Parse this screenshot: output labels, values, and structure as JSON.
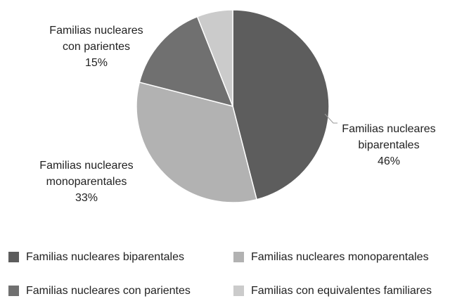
{
  "chart_data": {
    "type": "pie",
    "categories": [
      "Familias nucleares biparentales",
      "Familias nucleares monoparentales",
      "Familias nucleares con parientes",
      "Familias con equivalentes familiares"
    ],
    "values": [
      46,
      33,
      15,
      6
    ],
    "value_labels": [
      "46%",
      "33%",
      "15%",
      null
    ],
    "colors": [
      "#5d5d5d",
      "#b2b2b2",
      "#707070",
      "#cbcbcb"
    ],
    "legend": "bottom"
  }
}
